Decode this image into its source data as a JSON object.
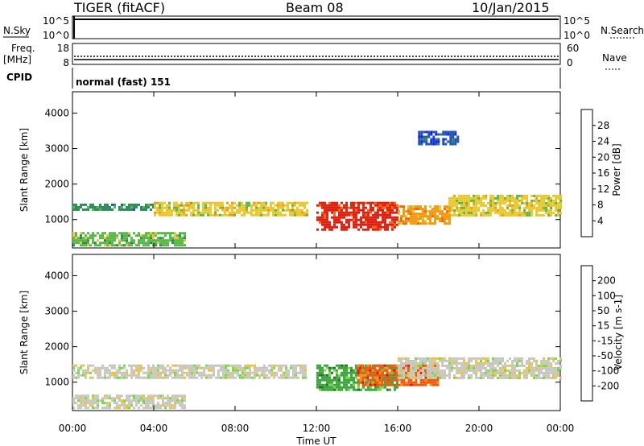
{
  "header": {
    "title": "TIGER (fitACF)",
    "beam": "Beam 08",
    "date": "10/Jan/2015"
  },
  "strips": {
    "nsky": {
      "label": "N.Sky",
      "ticks": [
        "10^5",
        "10^0"
      ],
      "right_label": "N.Search",
      "right_ticks": [
        "10^5",
        "10^0"
      ]
    },
    "freq": {
      "label_line1": "Freq.",
      "label_line2": "[MHz]",
      "ticks": [
        "18",
        "8"
      ],
      "right_label": "Nave",
      "right_ticks": [
        "60",
        "0"
      ]
    },
    "cpid": {
      "label": "CPID",
      "text": "normal (fast) 151"
    }
  },
  "chart_data": [
    {
      "type": "heatmap",
      "ylabel": "Slant Range [km]",
      "yticks": [
        1000,
        2000,
        3000,
        4000
      ],
      "ylim": [
        200,
        4600
      ],
      "xlim": [
        "00:00",
        "24:00"
      ],
      "colorbar": {
        "label": "Power [dB]",
        "ticks": [
          "4",
          "8",
          "12",
          "16",
          "20",
          "24",
          "28"
        ],
        "colors": [
          "#1a1aff",
          "#2255b0",
          "#2e8a5a",
          "#58b849",
          "#e8c82c",
          "#f29a12",
          "#f06a0a",
          "#e01e10"
        ]
      },
      "bands": [
        {
          "start": "00:00",
          "end": "04:00",
          "range_low": 1250,
          "range_high": 1450,
          "level_db": 10
        },
        {
          "start": "00:00",
          "end": "05:30",
          "range_low": 300,
          "range_high": 650,
          "level_db": 14
        },
        {
          "start": "04:00",
          "end": "11:30",
          "range_low": 1100,
          "range_high": 1500,
          "level_db": 18
        },
        {
          "start": "12:00",
          "end": "16:00",
          "range_low": 750,
          "range_high": 1500,
          "level_db": 28
        },
        {
          "start": "16:00",
          "end": "18:30",
          "range_low": 900,
          "range_high": 1400,
          "level_db": 20
        },
        {
          "start": "18:30",
          "end": "24:00",
          "range_low": 1100,
          "range_high": 1700,
          "level_db": 18
        },
        {
          "start": "17:00",
          "end": "19:00",
          "range_low": 3100,
          "range_high": 3500,
          "level_db": 6
        }
      ]
    },
    {
      "type": "heatmap",
      "ylabel": "Slant Range [km]",
      "xlabel": "Time UT",
      "yticks": [
        1000,
        2000,
        3000,
        4000
      ],
      "ylim": [
        200,
        4600
      ],
      "xlim": [
        "00:00",
        "24:00"
      ],
      "xticks": [
        "00:00",
        "04:00",
        "08:00",
        "12:00",
        "16:00",
        "20:00",
        "00:00"
      ],
      "colorbar": {
        "label": "Velocity [m s-1]",
        "ticks": [
          "200",
          "100",
          "50",
          "15",
          "-15",
          "-50",
          "-100",
          "-200"
        ],
        "colors": [
          "#1a2ac8",
          "#2a6e3a",
          "#3aa83a",
          "#7cd84a",
          "#c8c8c0",
          "#f2c22a",
          "#f29a12",
          "#f05a10",
          "#e01010"
        ]
      },
      "bands": [
        {
          "start": "00:00",
          "end": "11:30",
          "range_low": 1100,
          "range_high": 1500,
          "velocity": 0
        },
        {
          "start": "00:00",
          "end": "05:30",
          "range_low": 300,
          "range_high": 650,
          "velocity": 0
        },
        {
          "start": "12:00",
          "end": "16:00",
          "range_low": 800,
          "range_high": 1500,
          "velocity": 50
        },
        {
          "start": "14:00",
          "end": "18:00",
          "range_low": 900,
          "range_high": 1500,
          "velocity": -120
        },
        {
          "start": "16:00",
          "end": "24:00",
          "range_low": 1100,
          "range_high": 1700,
          "velocity": 0
        }
      ]
    }
  ]
}
